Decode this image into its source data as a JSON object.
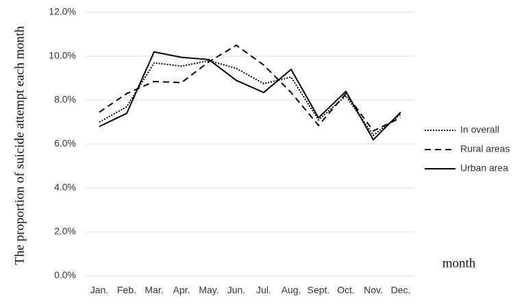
{
  "chart_data": {
    "type": "line",
    "y_label": "The proportion of suicide attempt each month",
    "x_label": "month",
    "categories": [
      "Jan.",
      "Feb.",
      "Mar.",
      "Apr.",
      "May.",
      "Jun.",
      "Jul.",
      "Aug.",
      "Sept.",
      "Oct.",
      "Nov.",
      "Dec."
    ],
    "series": [
      {
        "name": "In overall",
        "color": "#000000",
        "dash": "dotted",
        "values": [
          7.0,
          7.7,
          9.7,
          9.55,
          9.8,
          9.45,
          8.75,
          9.05,
          7.1,
          8.2,
          6.4,
          7.35
        ]
      },
      {
        "name": "Rural areas",
        "color": "#000000",
        "dash": "dashed",
        "values": [
          7.45,
          8.3,
          8.85,
          8.8,
          9.75,
          10.5,
          9.6,
          8.35,
          6.85,
          8.3,
          6.6,
          7.2
        ]
      },
      {
        "name": "Urban area",
        "color": "#000000",
        "dash": "solid",
        "values": [
          6.8,
          7.4,
          10.2,
          9.95,
          9.85,
          8.9,
          8.35,
          9.4,
          7.2,
          8.4,
          6.2,
          7.45
        ]
      }
    ],
    "ylim": [
      0,
      12
    ],
    "yticks": [
      {
        "value": 0,
        "label": "0.0%"
      },
      {
        "value": 2,
        "label": "2.0%"
      },
      {
        "value": 4,
        "label": "4.0%"
      },
      {
        "value": 6,
        "label": "6.0%"
      },
      {
        "value": 8,
        "label": "8.0%"
      },
      {
        "value": 10,
        "label": "10.0%"
      },
      {
        "value": 12,
        "label": "12.0%"
      }
    ],
    "grid": true,
    "legend": "right"
  }
}
